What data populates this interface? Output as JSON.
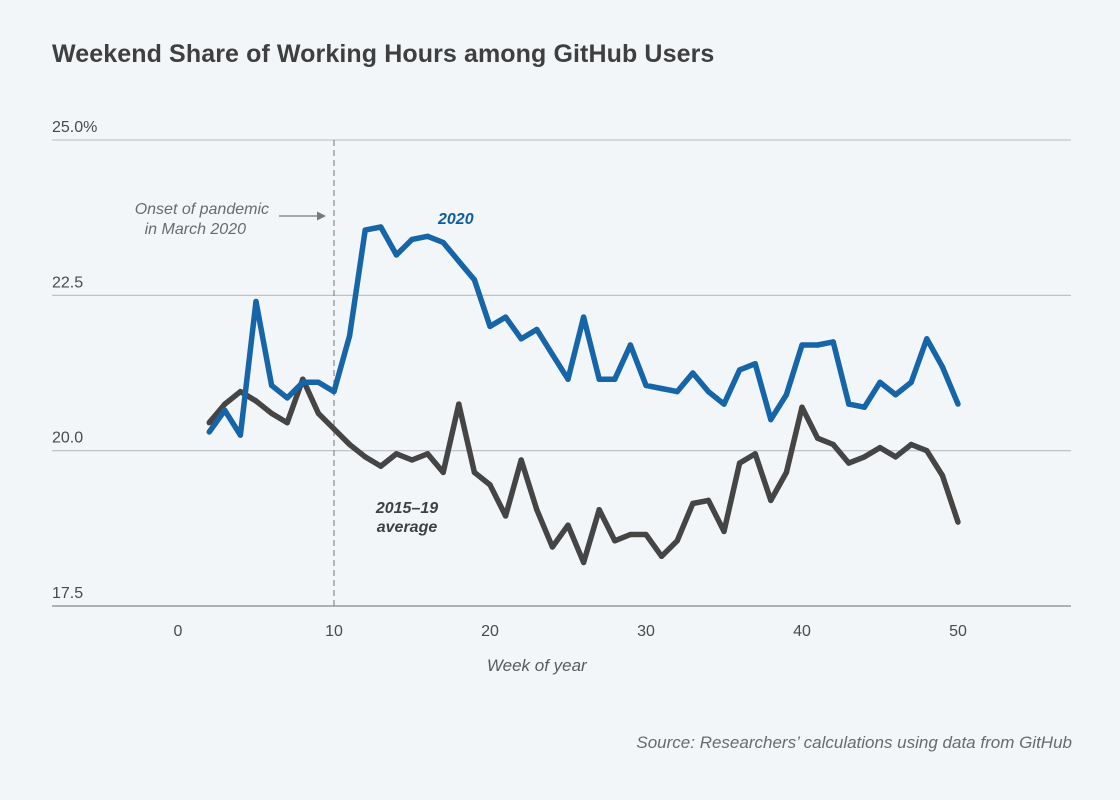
{
  "chart_data": {
    "type": "line",
    "title": "Weekend Share of Working Hours among GitHub Users",
    "xlabel": "Week of year",
    "ylabel": "",
    "xlim": [
      -8,
      57
    ],
    "ylim": [
      17.5,
      25.0
    ],
    "xticks": [
      0,
      10,
      20,
      30,
      40,
      50
    ],
    "xtick_labels": [
      "0",
      "10",
      "20",
      "30",
      "40",
      "50"
    ],
    "yticks": [
      17.5,
      20.0,
      22.5,
      25.0
    ],
    "ytick_labels": [
      "17.5",
      "20.0",
      "22.5",
      "25.0%"
    ],
    "grid": "horizontal",
    "series": [
      {
        "name": "2020",
        "color": "#1565a8",
        "x": [
          2,
          3,
          4,
          5,
          6,
          7,
          8,
          9,
          10,
          11,
          12,
          13,
          14,
          15,
          16,
          17,
          18,
          19,
          20,
          21,
          22,
          23,
          24,
          25,
          26,
          27,
          28,
          29,
          30,
          31,
          32,
          33,
          34,
          35,
          36,
          37,
          38,
          39,
          40,
          41,
          42,
          43,
          44,
          45,
          46,
          47,
          48,
          49,
          50
        ],
        "values": [
          20.3,
          20.65,
          20.25,
          22.4,
          21.05,
          20.85,
          21.1,
          21.1,
          20.95,
          21.85,
          23.55,
          23.6,
          23.15,
          23.4,
          23.45,
          23.35,
          23.05,
          22.75,
          22.0,
          22.15,
          21.8,
          21.95,
          21.55,
          21.15,
          22.15,
          21.15,
          21.15,
          21.7,
          21.05,
          21.0,
          20.95,
          21.25,
          20.95,
          20.75,
          21.3,
          21.4,
          20.5,
          20.9,
          21.7,
          21.7,
          21.75,
          20.75,
          20.7,
          21.1,
          20.9,
          21.1,
          21.8,
          21.35,
          20.75
        ]
      },
      {
        "name": "2015–19 average",
        "color": "#454545",
        "x": [
          2,
          3,
          4,
          5,
          6,
          7,
          8,
          9,
          10,
          11,
          12,
          13,
          14,
          15,
          16,
          17,
          18,
          19,
          20,
          21,
          22,
          23,
          24,
          25,
          26,
          27,
          28,
          29,
          30,
          31,
          32,
          33,
          34,
          35,
          36,
          37,
          38,
          39,
          40,
          41,
          42,
          43,
          44,
          45,
          46,
          47,
          48,
          49,
          50
        ],
        "values": [
          20.45,
          20.75,
          20.95,
          20.8,
          20.6,
          20.45,
          21.15,
          20.6,
          20.35,
          20.1,
          19.9,
          19.75,
          19.95,
          19.85,
          19.95,
          19.65,
          20.75,
          19.65,
          19.45,
          18.95,
          19.85,
          19.05,
          18.45,
          18.8,
          18.2,
          19.05,
          18.55,
          18.65,
          18.65,
          18.3,
          18.55,
          19.15,
          19.2,
          18.7,
          19.8,
          19.95,
          19.2,
          19.65,
          20.7,
          20.2,
          20.1,
          19.8,
          19.9,
          20.05,
          19.9,
          20.1,
          20.0,
          19.6,
          18.85
        ]
      }
    ],
    "annotations": {
      "pandemic_week": 10,
      "pandemic_text_line1": "Onset of pandemic",
      "pandemic_text_line2": "in March 2020",
      "label_2020": "2020",
      "label_avg_line1": "2015–19",
      "label_avg_line2": "average"
    },
    "source": "Source: Researchers’ calculations using data from GitHub"
  }
}
